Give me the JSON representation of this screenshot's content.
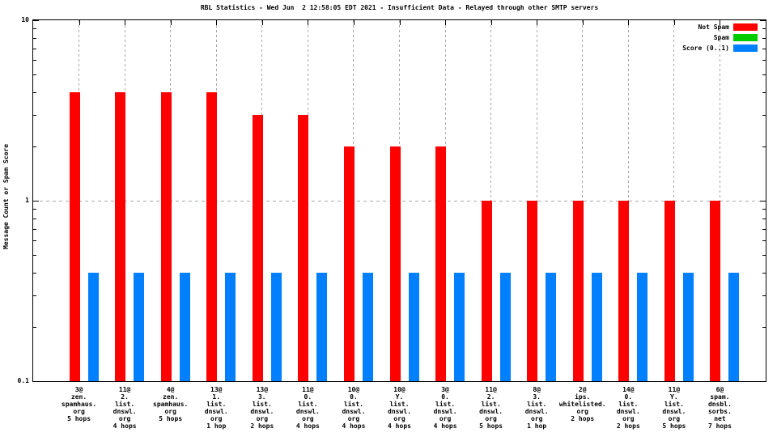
{
  "chart_data": {
    "type": "bar",
    "title": "RBL Statistics - Wed Jun  2 12:58:05 EDT 2021 - Insufficient Data - Relayed through other SMTP servers",
    "ylabel": "Message Count or Spam Score",
    "yscale": "log",
    "ylim": [
      0.1,
      10
    ],
    "ytick_labels": [
      {
        "value": 10,
        "label": "10"
      },
      {
        "value": 1,
        "label": "1"
      },
      {
        "value": 0.1,
        "label": "0.1"
      }
    ],
    "grid": {
      "horizontal_dashed_at": [
        1
      ],
      "vertical_dashed": "at-each-category",
      "grid_color": "#a8a8a8"
    },
    "legend_position": "top-right-inside",
    "categories": [
      [
        "3@",
        "zen.",
        "spamhaus.",
        "org",
        "5 hops"
      ],
      [
        "11@",
        "2.",
        "list.",
        "dnswl.",
        "org",
        "4 hops"
      ],
      [
        "4@",
        "zen.",
        "spamhaus.",
        "org",
        "5 hops"
      ],
      [
        "13@",
        "1.",
        "list.",
        "dnswl.",
        "org",
        "1 hop"
      ],
      [
        "13@",
        "3.",
        "list.",
        "dnswl.",
        "org",
        "2 hops"
      ],
      [
        "11@",
        "0.",
        "list.",
        "dnswl.",
        "org",
        "4 hops"
      ],
      [
        "10@",
        "0.",
        "list.",
        "dnswl.",
        "org",
        "4 hops"
      ],
      [
        "10@",
        "Y.",
        "list.",
        "dnswl.",
        "org",
        "4 hops"
      ],
      [
        "3@",
        "0.",
        "list.",
        "dnswl.",
        "org",
        "4 hops"
      ],
      [
        "11@",
        "2.",
        "list.",
        "dnswl.",
        "org",
        "5 hops"
      ],
      [
        "8@",
        "3.",
        "list.",
        "dnswl.",
        "org",
        "1 hop"
      ],
      [
        "2@",
        "ips.",
        "whitelisted.",
        "org",
        "2 hops"
      ],
      [
        "14@",
        "0.",
        "list.",
        "dnswl.",
        "org",
        "2 hops"
      ],
      [
        "11@",
        "Y.",
        "list.",
        "dnswl.",
        "org",
        "5 hops"
      ],
      [
        "6@",
        "spam.",
        "dnsbl.",
        "sorbs.",
        "net",
        "7 hops"
      ]
    ],
    "series": [
      {
        "name": "Not Spam",
        "color": "#ff0000",
        "values": [
          4,
          4,
          4,
          4,
          3,
          3,
          2,
          2,
          2,
          1,
          1,
          1,
          1,
          1,
          1
        ]
      },
      {
        "name": "Spam",
        "color": "#00cc00",
        "values": [
          0,
          0,
          0,
          0,
          0,
          0,
          0,
          0,
          0,
          0,
          0,
          0,
          0,
          0,
          0
        ]
      },
      {
        "name": "Score (0..1)",
        "color": "#0080ff",
        "values": [
          0.4,
          0.4,
          0.4,
          0.4,
          0.4,
          0.4,
          0.4,
          0.4,
          0.4,
          0.4,
          0.4,
          0.4,
          0.4,
          0.4,
          0.4
        ]
      }
    ]
  }
}
